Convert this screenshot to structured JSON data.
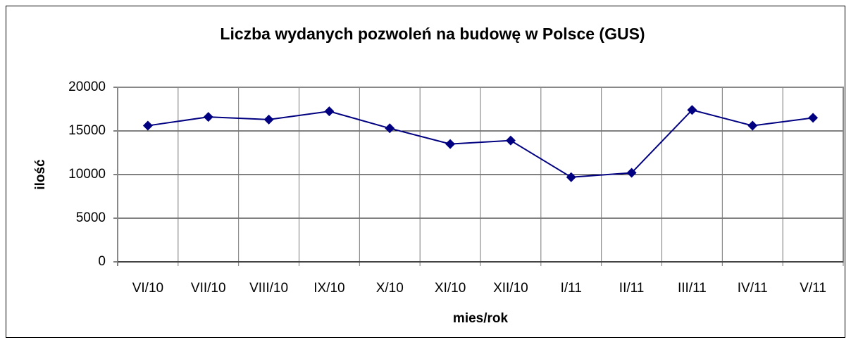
{
  "chart_data": {
    "type": "line",
    "title": "Liczba wydanych pozwoleń na budowę w Polsce (GUS)",
    "x_label": "mies/rok",
    "y_label": "ilość",
    "categories": [
      "VI/10",
      "VII/10",
      "VIII/10",
      "IX/10",
      "X/10",
      "XI/10",
      "XII/10",
      "I/11",
      "II/11",
      "III/11",
      "IV/11",
      "V/11"
    ],
    "series": [
      {
        "name": "ilość",
        "color": "#000080",
        "values": [
          15600,
          16600,
          16300,
          17250,
          15300,
          13500,
          13900,
          9700,
          10200,
          17400,
          15600,
          16500
        ]
      }
    ],
    "ylim": [
      0,
      20000
    ],
    "yticks": [
      0,
      5000,
      10000,
      15000,
      20000
    ],
    "grid": true,
    "legend": false
  }
}
